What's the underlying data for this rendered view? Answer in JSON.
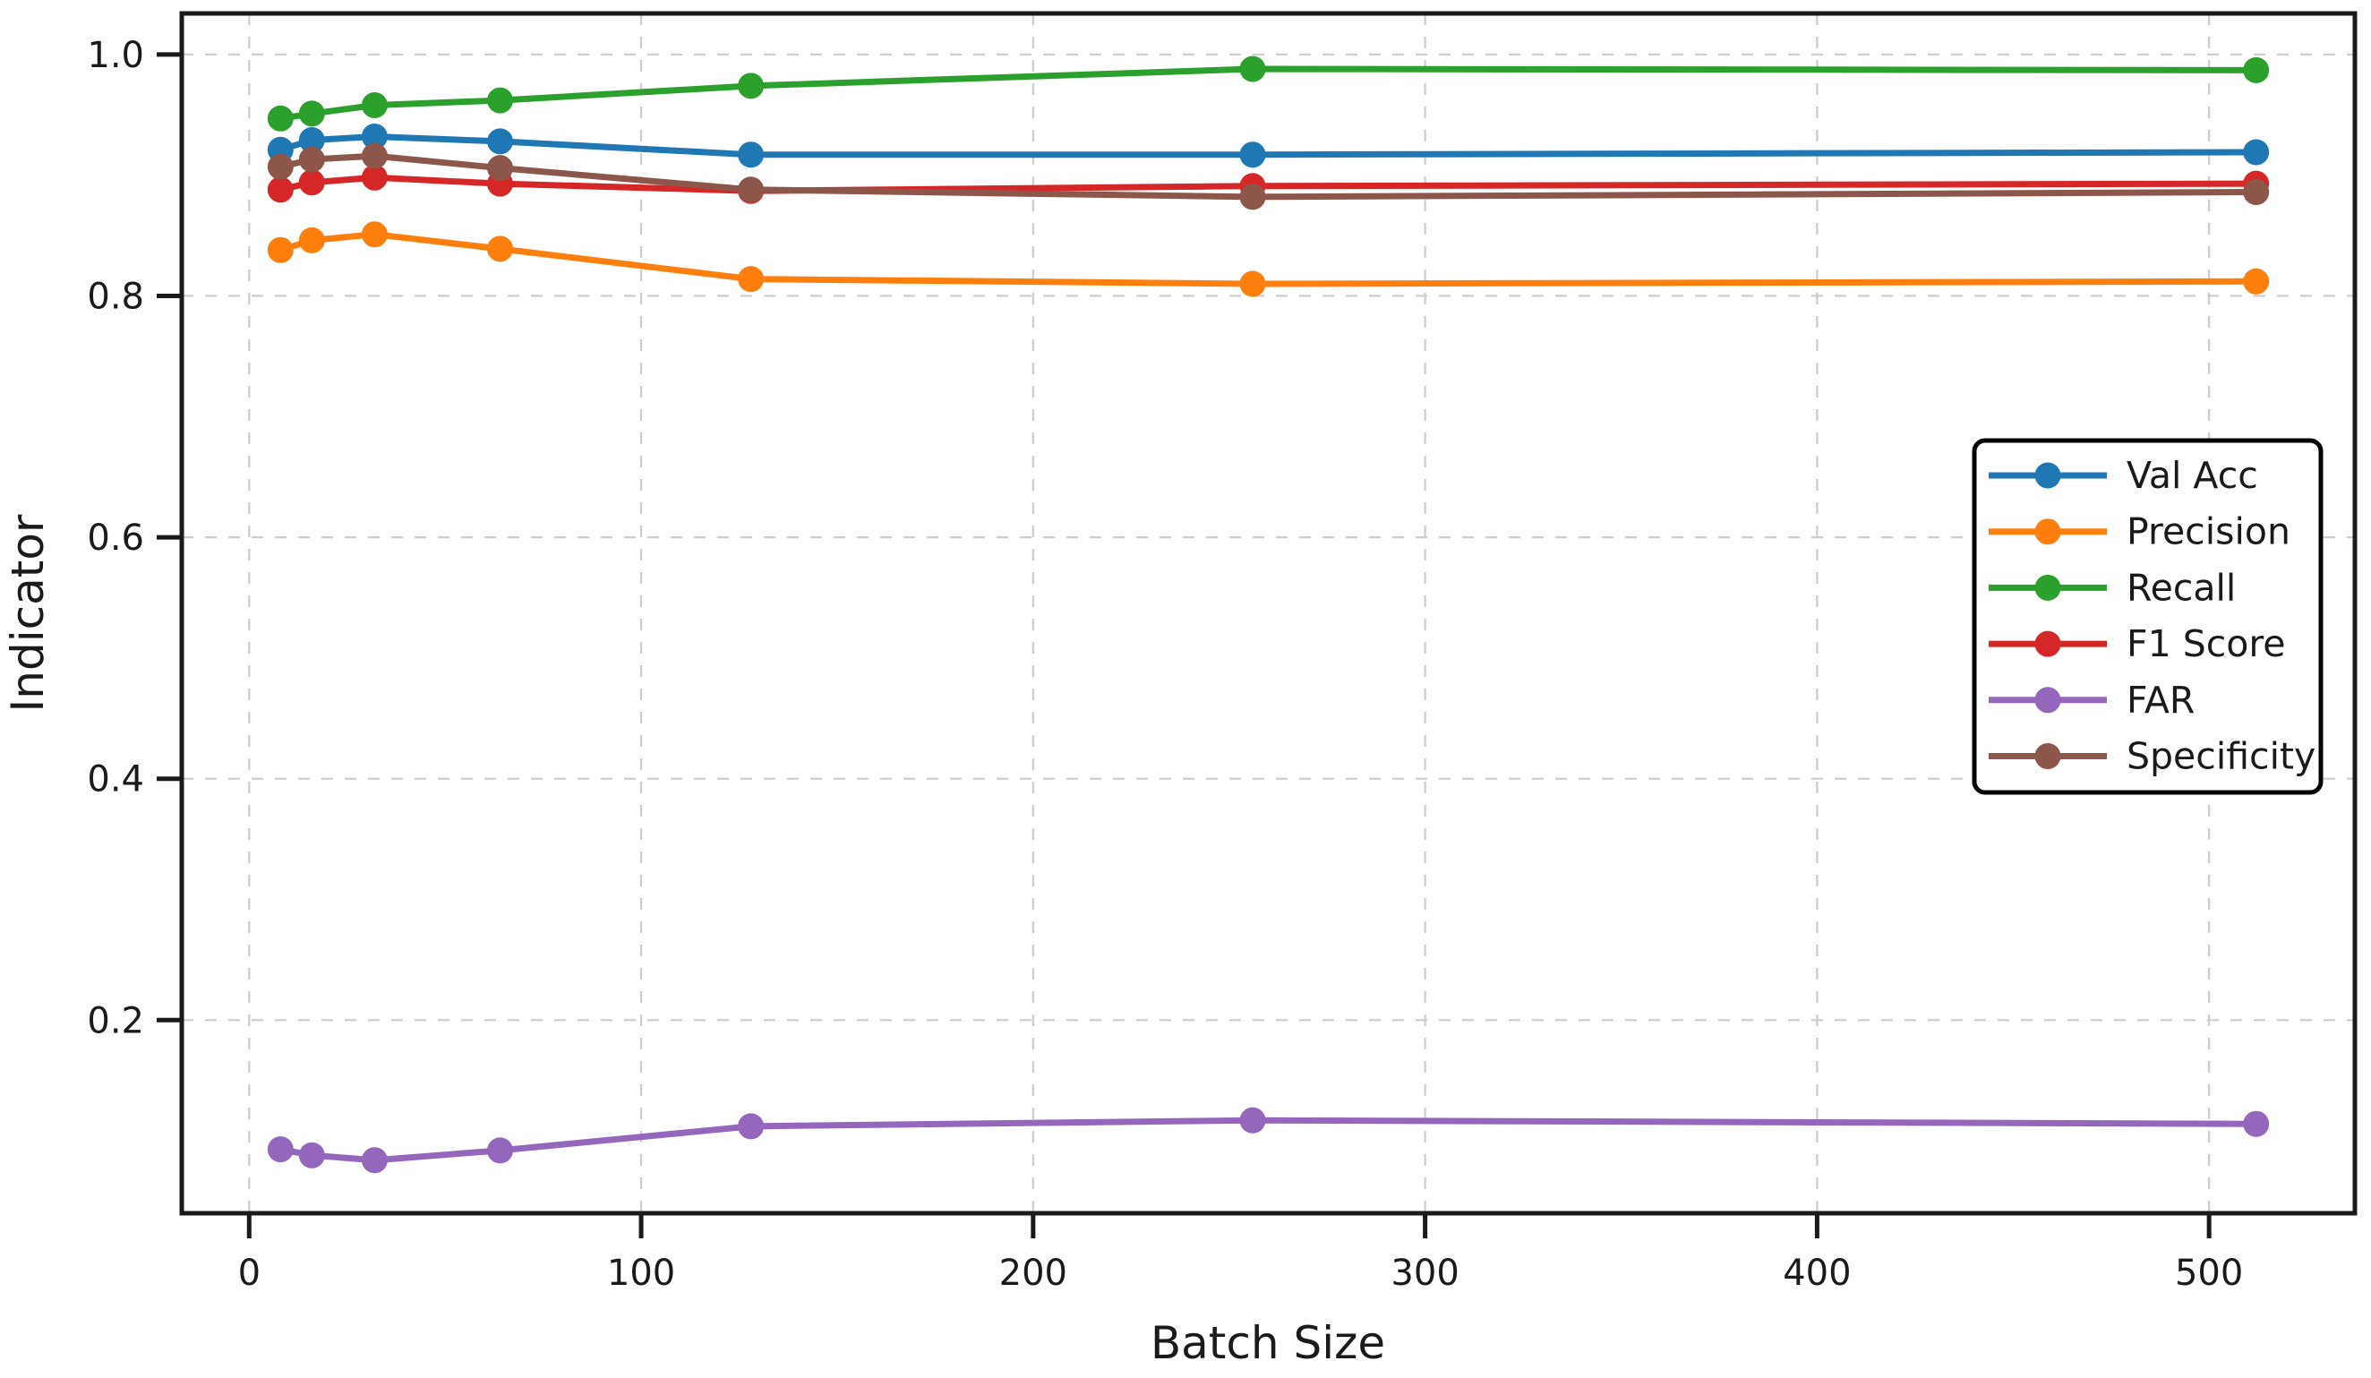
{
  "chart_data": {
    "type": "line",
    "title": "",
    "xlabel": "Batch Size",
    "ylabel": "Indicator",
    "x": [
      8,
      16,
      32,
      64,
      128,
      256,
      512
    ],
    "series": [
      {
        "name": "Val Acc",
        "color": "#1f77b4",
        "values": [
          0.921,
          0.929,
          0.932,
          0.928,
          0.917,
          0.917,
          0.919
        ]
      },
      {
        "name": "Precision",
        "color": "#ff7f0e",
        "values": [
          0.838,
          0.846,
          0.851,
          0.839,
          0.814,
          0.81,
          0.812
        ]
      },
      {
        "name": "Recall",
        "color": "#2ca02c",
        "values": [
          0.947,
          0.951,
          0.958,
          0.962,
          0.974,
          0.988,
          0.987
        ]
      },
      {
        "name": "F1 Score",
        "color": "#d62728",
        "values": [
          0.888,
          0.894,
          0.898,
          0.893,
          0.887,
          0.891,
          0.893
        ]
      },
      {
        "name": "FAR",
        "color": "#9467bd",
        "values": [
          0.093,
          0.088,
          0.084,
          0.092,
          0.112,
          0.117,
          0.114
        ]
      },
      {
        "name": "Specificity",
        "color": "#8c564b",
        "values": [
          0.907,
          0.913,
          0.916,
          0.906,
          0.888,
          0.882,
          0.886
        ]
      }
    ],
    "xlim": [
      -17.2,
      537.2
    ],
    "ylim": [
      0.04,
      1.034
    ],
    "xticks": {
      "values": [
        0,
        100,
        200,
        300,
        400,
        500
      ],
      "labels": [
        "0",
        "100",
        "200",
        "300",
        "400",
        "500"
      ]
    },
    "yticks": {
      "values": [
        0.2,
        0.4,
        0.6,
        0.8,
        1.0
      ],
      "labels": [
        "0.2",
        "0.4",
        "0.6",
        "0.8",
        "1.0"
      ]
    },
    "grid": true,
    "grid_color": "#cccccc",
    "spine_color": "#1a1a1a",
    "legend_position": "center right",
    "legend_entries": [
      "Val Acc",
      "Precision",
      "Recall",
      "F1 Score",
      "FAR",
      "Specificity"
    ]
  }
}
